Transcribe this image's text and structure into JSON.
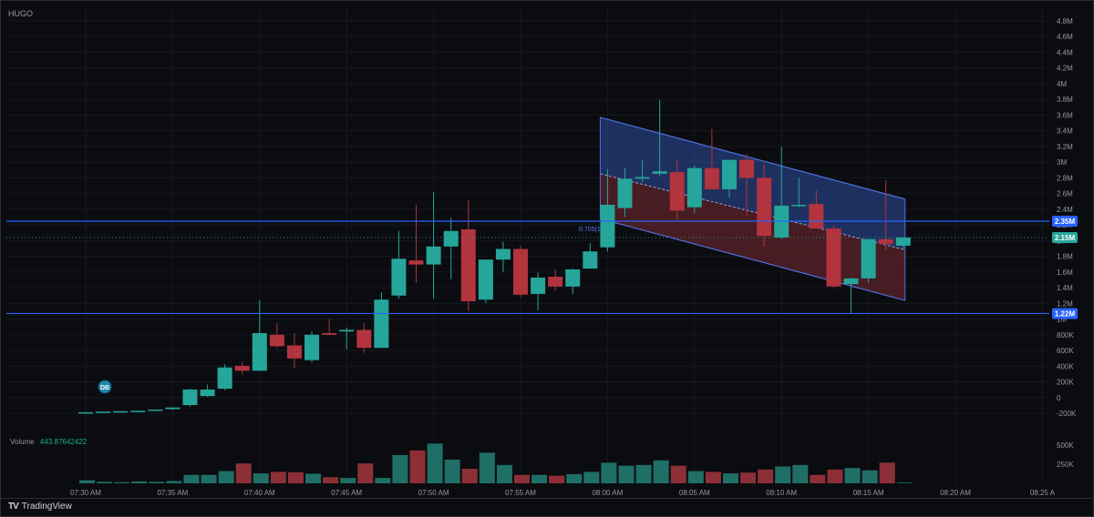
{
  "symbol": "HUGO",
  "brand": {
    "name": "TradingView",
    "icon": "tradingview-logo-icon"
  },
  "badge": "DB",
  "colors": {
    "up": "#26a69a",
    "down": "#b2343e",
    "level": "#2962ff",
    "channel_top": "#2f4ea3",
    "channel_bottom": "#7a2a33"
  },
  "volume_legend": {
    "label": "Volume",
    "value": "443.87642422"
  },
  "fib_label": "0.705(1.76)",
  "chart_data": {
    "type": "candlestick",
    "price_axis": [
      "4.8M",
      "4.6M",
      "4.4M",
      "4.2M",
      "4M",
      "3.8M",
      "3.6M",
      "3.4M",
      "3.2M",
      "3M",
      "2.8M",
      "2.6M",
      "2.4M",
      "2.2M",
      "2M",
      "1.8M",
      "1.6M",
      "1.4M",
      "1.2M",
      "1M",
      "800K",
      "600K",
      "400K",
      "200K",
      "0",
      "-200K"
    ],
    "volume_axis": [
      "500K",
      "250K"
    ],
    "time_axis": [
      "07:30 AM",
      "07:35 AM",
      "07:40 AM",
      "07:45 AM",
      "07:50 AM",
      "07:55 AM",
      "08:00 AM",
      "08:05 AM",
      "08:10 AM",
      "08:15 AM",
      "08:20 AM",
      "08:25 A"
    ],
    "ylim": [
      -200000,
      4800000
    ],
    "price_labels": [
      {
        "text": "2.35M",
        "value": 2350000,
        "kind": "level"
      },
      {
        "text": "2.15M",
        "value": 2150000,
        "kind": "last"
      },
      {
        "text": "1.22M",
        "value": 1220000,
        "kind": "level"
      }
    ],
    "levels": [
      2350000,
      1220000
    ],
    "candles": [
      {
        "t": "07:30",
        "o": 10000,
        "h": 15000,
        "l": 5000,
        "c": 12000,
        "v": 40000
      },
      {
        "t": "07:31",
        "o": 15000,
        "h": 18000,
        "l": 10000,
        "c": 20000,
        "v": 20000
      },
      {
        "t": "07:32",
        "o": 20000,
        "h": 22000,
        "l": 15000,
        "c": 25000,
        "v": 15000
      },
      {
        "t": "07:33",
        "o": 25000,
        "h": 30000,
        "l": 20000,
        "c": 30000,
        "v": 25000
      },
      {
        "t": "07:34",
        "o": 35000,
        "h": 40000,
        "l": 30000,
        "c": 45000,
        "v": 20000
      },
      {
        "t": "07:35",
        "o": 50000,
        "h": 60000,
        "l": 40000,
        "c": 70000,
        "v": 30000
      },
      {
        "t": "07:36",
        "o": 100000,
        "h": 300000,
        "l": 80000,
        "c": 290000,
        "v": 110000
      },
      {
        "t": "07:37",
        "o": 210000,
        "h": 350000,
        "l": 200000,
        "c": 290000,
        "v": 110000
      },
      {
        "t": "07:38",
        "o": 300000,
        "h": 600000,
        "l": 280000,
        "c": 560000,
        "v": 160000
      },
      {
        "t": "07:39",
        "o": 580000,
        "h": 630000,
        "l": 470000,
        "c": 520000,
        "v": 260000
      },
      {
        "t": "07:40",
        "o": 520000,
        "h": 1380000,
        "l": 520000,
        "c": 980000,
        "v": 130000
      },
      {
        "t": "07:41",
        "o": 960000,
        "h": 1100000,
        "l": 800000,
        "c": 820000,
        "v": 150000
      },
      {
        "t": "07:42",
        "o": 830000,
        "h": 980000,
        "l": 550000,
        "c": 670000,
        "v": 145000
      },
      {
        "t": "07:43",
        "o": 650000,
        "h": 1000000,
        "l": 620000,
        "c": 960000,
        "v": 125000
      },
      {
        "t": "07:44",
        "o": 980000,
        "h": 1150000,
        "l": 960000,
        "c": 960000,
        "v": 80000
      },
      {
        "t": "07:45",
        "o": 1000000,
        "h": 1050000,
        "l": 780000,
        "c": 1020000,
        "v": 70000
      },
      {
        "t": "07:46",
        "o": 1020000,
        "h": 1100000,
        "l": 740000,
        "c": 800000,
        "v": 260000
      },
      {
        "t": "07:47",
        "o": 800000,
        "h": 1480000,
        "l": 800000,
        "c": 1390000,
        "v": 70000
      },
      {
        "t": "07:48",
        "o": 1440000,
        "h": 2230000,
        "l": 1400000,
        "c": 1890000,
        "v": 370000
      },
      {
        "t": "07:49",
        "o": 1870000,
        "h": 2550000,
        "l": 1600000,
        "c": 1820000,
        "v": 430000
      },
      {
        "t": "07:50",
        "o": 1820000,
        "h": 2710000,
        "l": 1400000,
        "c": 2040000,
        "v": 520000
      },
      {
        "t": "07:51",
        "o": 2040000,
        "h": 2390000,
        "l": 1640000,
        "c": 2230000,
        "v": 310000
      },
      {
        "t": "07:52",
        "o": 2250000,
        "h": 2610000,
        "l": 1250000,
        "c": 1370000,
        "v": 190000
      },
      {
        "t": "07:53",
        "o": 1390000,
        "h": 1880000,
        "l": 1350000,
        "c": 1880000,
        "v": 400000
      },
      {
        "t": "07:54",
        "o": 1880000,
        "h": 2100000,
        "l": 1730000,
        "c": 2010000,
        "v": 240000
      },
      {
        "t": "07:55",
        "o": 2010000,
        "h": 2050000,
        "l": 1420000,
        "c": 1450000,
        "v": 110000
      },
      {
        "t": "07:56",
        "o": 1460000,
        "h": 1720000,
        "l": 1260000,
        "c": 1660000,
        "v": 110000
      },
      {
        "t": "07:57",
        "o": 1670000,
        "h": 1760000,
        "l": 1500000,
        "c": 1550000,
        "v": 100000
      },
      {
        "t": "07:58",
        "o": 1550000,
        "h": 1770000,
        "l": 1460000,
        "c": 1760000,
        "v": 120000
      },
      {
        "t": "07:59",
        "o": 1770000,
        "h": 2080000,
        "l": 1770000,
        "c": 1980000,
        "v": 150000
      },
      {
        "t": "08:00",
        "o": 2030000,
        "h": 2990000,
        "l": 1980000,
        "c": 2550000,
        "v": 270000
      },
      {
        "t": "08:01",
        "o": 2510000,
        "h": 3000000,
        "l": 2400000,
        "c": 2870000,
        "v": 230000
      },
      {
        "t": "08:02",
        "o": 2870000,
        "h": 3100000,
        "l": 2830000,
        "c": 2890000,
        "v": 240000
      },
      {
        "t": "08:03",
        "o": 2930000,
        "h": 3830000,
        "l": 2900000,
        "c": 2960000,
        "v": 300000
      },
      {
        "t": "08:04",
        "o": 2950000,
        "h": 3110000,
        "l": 2370000,
        "c": 2480000,
        "v": 230000
      },
      {
        "t": "08:05",
        "o": 2520000,
        "h": 3030000,
        "l": 2450000,
        "c": 3000000,
        "v": 160000
      },
      {
        "t": "08:06",
        "o": 3000000,
        "h": 3480000,
        "l": 2740000,
        "c": 2740000,
        "v": 150000
      },
      {
        "t": "08:07",
        "o": 2740000,
        "h": 3090000,
        "l": 2640000,
        "c": 3100000,
        "v": 130000
      },
      {
        "t": "08:08",
        "o": 3100000,
        "h": 3170000,
        "l": 2410000,
        "c": 2880000,
        "v": 140000
      },
      {
        "t": "08:09",
        "o": 2880000,
        "h": 3050000,
        "l": 2040000,
        "c": 2170000,
        "v": 180000
      },
      {
        "t": "08:10",
        "o": 2150000,
        "h": 3260000,
        "l": 2130000,
        "c": 2540000,
        "v": 220000
      },
      {
        "t": "08:11",
        "o": 2540000,
        "h": 2880000,
        "l": 2520000,
        "c": 2550000,
        "v": 240000
      },
      {
        "t": "08:12",
        "o": 2560000,
        "h": 2730000,
        "l": 2260000,
        "c": 2260000,
        "v": 110000
      },
      {
        "t": "08:13",
        "o": 2260000,
        "h": 2300000,
        "l": 1530000,
        "c": 1550000,
        "v": 180000
      },
      {
        "t": "08:14",
        "o": 1580000,
        "h": 1660000,
        "l": 1220000,
        "c": 1650000,
        "v": 200000
      },
      {
        "t": "08:15",
        "o": 1650000,
        "h": 2110000,
        "l": 1600000,
        "c": 2130000,
        "v": 170000
      },
      {
        "t": "08:16",
        "o": 2130000,
        "h": 2850000,
        "l": 2000000,
        "c": 2070000,
        "v": 270000
      },
      {
        "t": "08:17",
        "o": 2050000,
        "h": 2150000,
        "l": 2020000,
        "c": 2150000,
        "v": 10000
      }
    ]
  }
}
